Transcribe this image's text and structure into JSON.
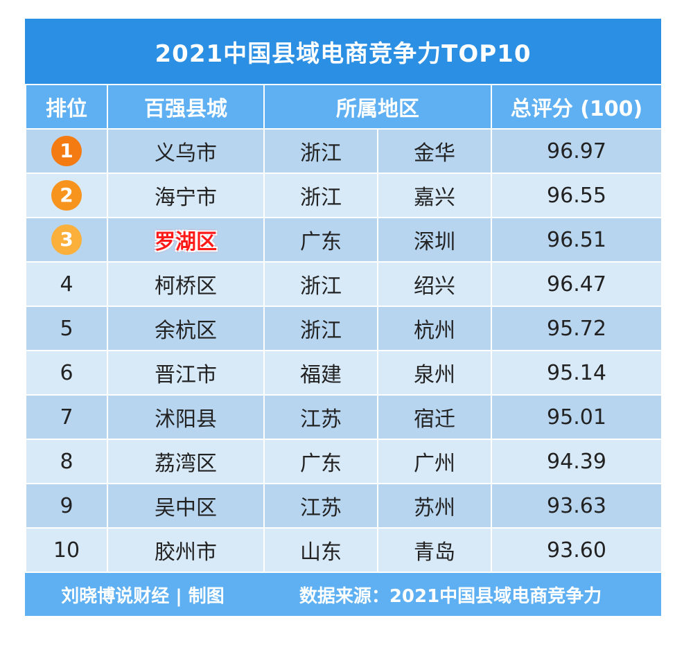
{
  "title": "2021中国县域电商竞争力TOP10",
  "headers": {
    "rank": "排位",
    "county": "百强县城",
    "region": "所属地区",
    "score": "总评分 (100)"
  },
  "rows": [
    {
      "rank": "1",
      "county": "义乌市",
      "province": "浙江",
      "city": "金华",
      "score": "96.97"
    },
    {
      "rank": "2",
      "county": "海宁市",
      "province": "浙江",
      "city": "嘉兴",
      "score": "96.55"
    },
    {
      "rank": "3",
      "county": "罗湖区",
      "province": "广东",
      "city": "深圳",
      "score": "96.51"
    },
    {
      "rank": "4",
      "county": "柯桥区",
      "province": "浙江",
      "city": "绍兴",
      "score": "96.47"
    },
    {
      "rank": "5",
      "county": "余杭区",
      "province": "浙江",
      "city": "杭州",
      "score": "95.72"
    },
    {
      "rank": "6",
      "county": "晋江市",
      "province": "福建",
      "city": "泉州",
      "score": "95.14"
    },
    {
      "rank": "7",
      "county": "沭阳县",
      "province": "江苏",
      "city": "宿迁",
      "score": "95.01"
    },
    {
      "rank": "8",
      "county": "荔湾区",
      "province": "广东",
      "city": "广州",
      "score": "94.39"
    },
    {
      "rank": "9",
      "county": "吴中区",
      "province": "江苏",
      "city": "苏州",
      "score": "93.63"
    },
    {
      "rank": "10",
      "county": "胶州市",
      "province": "山东",
      "city": "青岛",
      "score": "93.60"
    }
  ],
  "footer": {
    "credit": "刘晓博说财经 | 制图",
    "source": "数据来源：2021中国县域电商竞争力"
  },
  "colors": {
    "header": "#2b8fe4",
    "subheader": "#5eb0f2",
    "row_dark": "#b8d5ef",
    "row_light": "#d8e9f7",
    "medal_1": "#f47a12",
    "medal_2": "#f7941d",
    "medal_3": "#fbb03b",
    "highlight": "#ff1a1a"
  }
}
